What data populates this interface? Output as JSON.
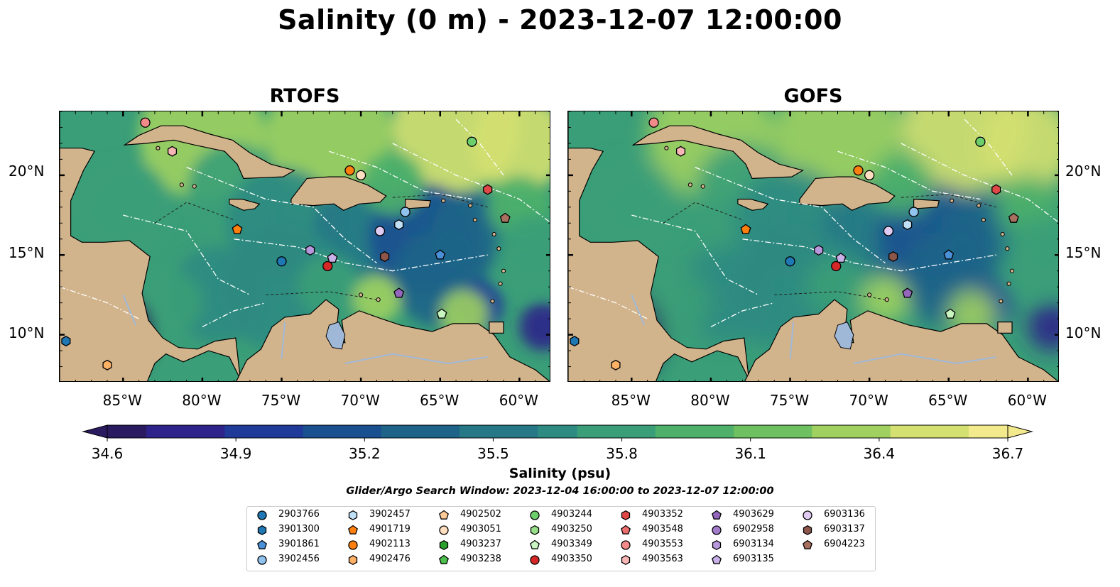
{
  "title": "Salinity (0 m) - 2023-12-07 12:00:00",
  "panels": [
    {
      "title": "RTOFS"
    },
    {
      "title": "GOFS"
    }
  ],
  "axes": {
    "x_ticks": [
      "85°W",
      "80°W",
      "75°W",
      "70°W",
      "65°W",
      "60°W"
    ],
    "x_tick_values": [
      -85,
      -80,
      -75,
      -70,
      -65,
      -60
    ],
    "y_ticks": [
      "20°N",
      "15°N",
      "10°N"
    ],
    "y_tick_values": [
      20,
      15,
      10
    ],
    "lon_range": [
      -89,
      -58
    ],
    "lat_range": [
      7,
      24
    ]
  },
  "colorbar": {
    "label": "Salinity (psu)",
    "ticks": [
      "34.6",
      "34.9",
      "35.2",
      "35.5",
      "35.8",
      "36.1",
      "36.4",
      "36.7"
    ],
    "range": [
      34.6,
      36.7
    ],
    "colormap": "haline",
    "colors": [
      "#2a1a60",
      "#2d238a",
      "#1f3a98",
      "#1a5090",
      "#1e6488",
      "#267886",
      "#2e8b82",
      "#3a9e78",
      "#4eb06a",
      "#6fc060",
      "#9fd060",
      "#d4e070",
      "#f2ea8c"
    ]
  },
  "search_window": "Glider/Argo Search Window: 2023-12-04 16:00:00 to 2023-12-07 12:00:00",
  "colors": {
    "land": "#d2b48c",
    "rivers": "#a0b8d8",
    "contour_lines": "#ffffff"
  },
  "legend": [
    {
      "id": "2903766",
      "shape": "circle",
      "color": "#1f77b4"
    },
    {
      "id": "3901300",
      "shape": "hexagon",
      "color": "#1f77b4"
    },
    {
      "id": "3901861",
      "shape": "pentagon",
      "color": "#4a90d9"
    },
    {
      "id": "3902456",
      "shape": "circle",
      "color": "#90c4ee"
    },
    {
      "id": "3902457",
      "shape": "hexagon",
      "color": "#bfe0f7"
    },
    {
      "id": "4901719",
      "shape": "pentagon",
      "color": "#ff7f0e"
    },
    {
      "id": "4902113",
      "shape": "circle",
      "color": "#ff7f0e"
    },
    {
      "id": "4902476",
      "shape": "hexagon",
      "color": "#ffb266"
    },
    {
      "id": "4902502",
      "shape": "pentagon",
      "color": "#ffcc99"
    },
    {
      "id": "4903051",
      "shape": "circle",
      "color": "#ffdfc0"
    },
    {
      "id": "4903237",
      "shape": "hexagon",
      "color": "#2ca02c"
    },
    {
      "id": "4903238",
      "shape": "pentagon",
      "color": "#4cc04c"
    },
    {
      "id": "4903244",
      "shape": "circle",
      "color": "#6ccf6c"
    },
    {
      "id": "4903250",
      "shape": "hexagon",
      "color": "#98df8a"
    },
    {
      "id": "4903349",
      "shape": "pentagon",
      "color": "#c8f5c0"
    },
    {
      "id": "4903350",
      "shape": "circle",
      "color": "#d62728"
    },
    {
      "id": "4903352",
      "shape": "hexagon",
      "color": "#e04848"
    },
    {
      "id": "4903548",
      "shape": "pentagon",
      "color": "#ec6d6d"
    },
    {
      "id": "4903553",
      "shape": "circle",
      "color": "#f28a8a"
    },
    {
      "id": "4903563",
      "shape": "hexagon",
      "color": "#f7b6b6"
    },
    {
      "id": "4903629",
      "shape": "pentagon",
      "color": "#9467bd"
    },
    {
      "id": "6902958",
      "shape": "circle",
      "color": "#a27ccb"
    },
    {
      "id": "6903134",
      "shape": "hexagon",
      "color": "#b898dd"
    },
    {
      "id": "6903135",
      "shape": "pentagon",
      "color": "#c8b0e8"
    },
    {
      "id": "6903136",
      "shape": "circle",
      "color": "#e0cbf2"
    },
    {
      "id": "6903137",
      "shape": "hexagon",
      "color": "#8c564b"
    },
    {
      "id": "6904223",
      "shape": "pentagon",
      "color": "#a8705e"
    }
  ],
  "floats": [
    {
      "id": "2903766",
      "lon": -75.0,
      "lat": 14.6
    },
    {
      "id": "3901300",
      "lon": -88.6,
      "lat": 9.6
    },
    {
      "id": "3901861",
      "lon": -65.0,
      "lat": 15.0
    },
    {
      "id": "3902456",
      "lon": -67.2,
      "lat": 17.7
    },
    {
      "id": "3902457",
      "lon": -67.6,
      "lat": 16.9
    },
    {
      "id": "4901719",
      "lon": -77.8,
      "lat": 16.6
    },
    {
      "id": "4902113",
      "lon": -70.7,
      "lat": 20.3
    },
    {
      "id": "4902476",
      "lon": -86.0,
      "lat": 8.1
    },
    {
      "id": "4903051",
      "lon": -70.0,
      "lat": 20.0
    },
    {
      "id": "4903244",
      "lon": -63.0,
      "lat": 22.1
    },
    {
      "id": "4903349",
      "lon": -64.9,
      "lat": 11.3
    },
    {
      "id": "4903350",
      "lon": -72.1,
      "lat": 14.3
    },
    {
      "id": "4903352",
      "lon": -62.0,
      "lat": 19.1
    },
    {
      "id": "4903553",
      "lon": -83.6,
      "lat": 23.3
    },
    {
      "id": "4903563",
      "lon": -81.9,
      "lat": 21.5
    },
    {
      "id": "4903629",
      "lon": -67.6,
      "lat": 12.6
    },
    {
      "id": "6903134",
      "lon": -73.2,
      "lat": 15.3
    },
    {
      "id": "6903135",
      "lon": -71.8,
      "lat": 14.8
    },
    {
      "id": "6903136",
      "lon": -68.8,
      "lat": 16.5
    },
    {
      "id": "6903137",
      "lon": -68.5,
      "lat": 14.9
    },
    {
      "id": "6904223",
      "lon": -60.9,
      "lat": 17.3
    }
  ]
}
